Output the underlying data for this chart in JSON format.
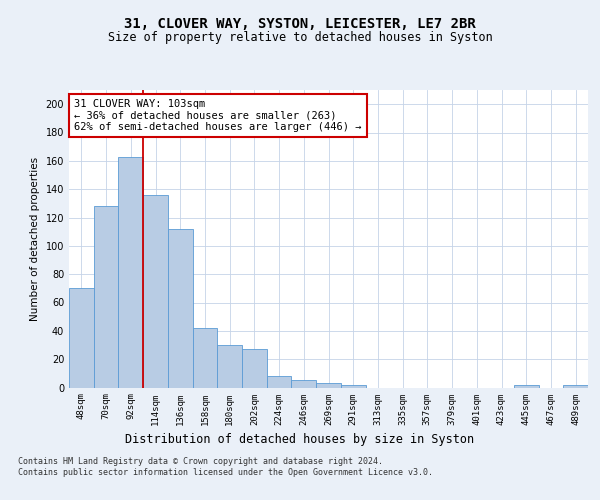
{
  "title": "31, CLOVER WAY, SYSTON, LEICESTER, LE7 2BR",
  "subtitle": "Size of property relative to detached houses in Syston",
  "xlabel": "Distribution of detached houses by size in Syston",
  "ylabel": "Number of detached properties",
  "bar_labels": [
    "48sqm",
    "70sqm",
    "92sqm",
    "114sqm",
    "136sqm",
    "158sqm",
    "180sqm",
    "202sqm",
    "224sqm",
    "246sqm",
    "269sqm",
    "291sqm",
    "313sqm",
    "335sqm",
    "357sqm",
    "379sqm",
    "401sqm",
    "423sqm",
    "445sqm",
    "467sqm",
    "489sqm"
  ],
  "bar_values": [
    70,
    128,
    163,
    136,
    112,
    42,
    30,
    27,
    8,
    5,
    3,
    2,
    0,
    0,
    0,
    0,
    0,
    0,
    2,
    0,
    2
  ],
  "bar_color": "#b8cce4",
  "bar_edge_color": "#5b9bd5",
  "red_line_x": 2.5,
  "annotation_text": "31 CLOVER WAY: 103sqm\n← 36% of detached houses are smaller (263)\n62% of semi-detached houses are larger (446) →",
  "annotation_box_color": "#ffffff",
  "annotation_box_edge": "#cc0000",
  "ylim": [
    0,
    210
  ],
  "yticks": [
    0,
    20,
    40,
    60,
    80,
    100,
    120,
    140,
    160,
    180,
    200
  ],
  "footer": "Contains HM Land Registry data © Crown copyright and database right 2024.\nContains public sector information licensed under the Open Government Licence v3.0.",
  "background_color": "#eaf0f8",
  "plot_background": "#ffffff",
  "grid_color": "#c5d3e8"
}
